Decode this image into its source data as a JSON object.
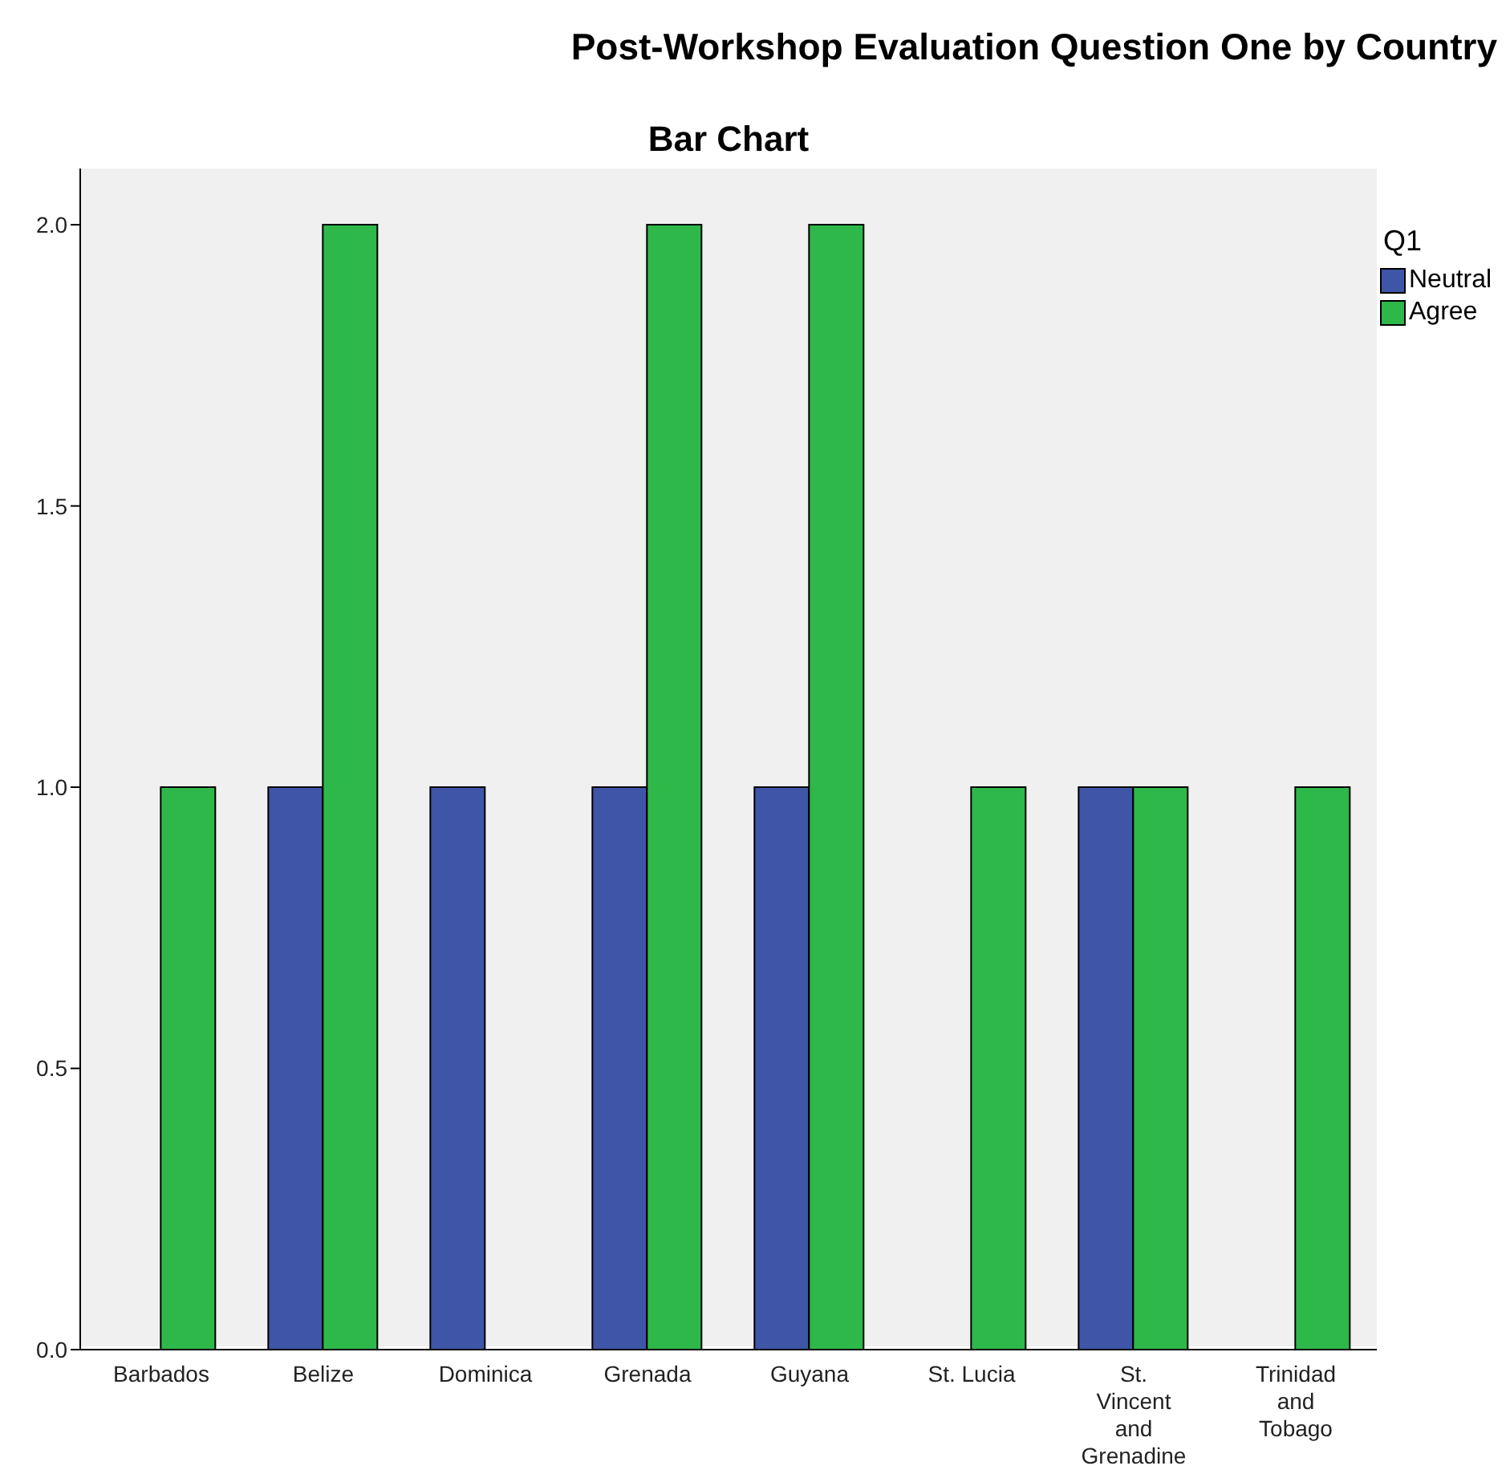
{
  "chart_data": {
    "type": "bar",
    "title": "Post-Workshop Evaluation Question One by Country",
    "subtitle": "Bar Chart",
    "legend_title": "Q1",
    "categories": [
      "Barbados",
      "Belize",
      "Dominica",
      "Grenada",
      "Guyana",
      "St. Lucia",
      "St. Vincent and Grenadine",
      "Trinidad and Tobago"
    ],
    "series": [
      {
        "name": "Neutral",
        "color": "#3f55a8",
        "values": [
          null,
          1,
          1,
          1,
          1,
          null,
          1,
          null
        ]
      },
      {
        "name": "Agree",
        "color": "#2eb84a",
        "values": [
          1,
          2,
          null,
          2,
          2,
          1,
          1,
          1
        ]
      }
    ],
    "ylim": [
      0,
      2.1
    ],
    "yticks": [
      {
        "value": 0,
        "label": "0.0"
      },
      {
        "value": 0.5,
        "label": "0.5"
      },
      {
        "value": 1,
        "label": "1.0"
      },
      {
        "value": 1.5,
        "label": "1.5"
      },
      {
        "value": 2,
        "label": "2.0"
      }
    ],
    "grid": false,
    "legend": "top right"
  }
}
